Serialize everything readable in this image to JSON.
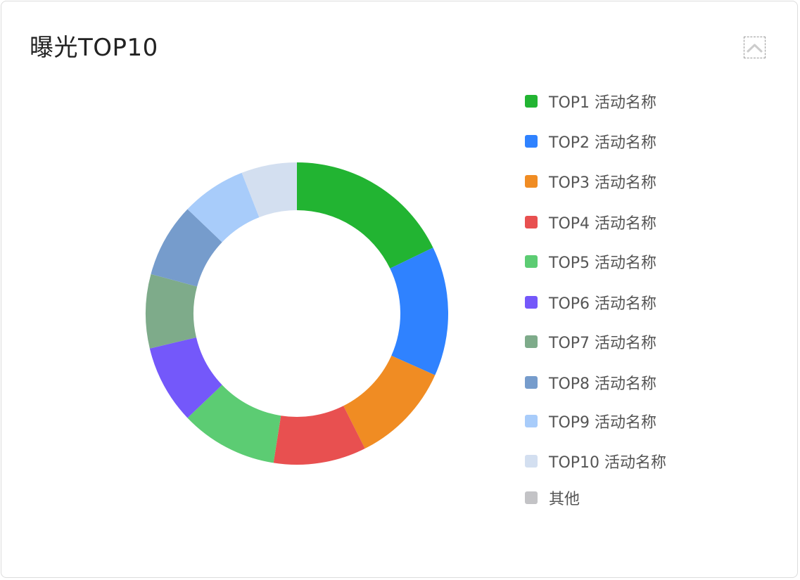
{
  "title": "曝光TOP10",
  "collapse_icon": "chevron-up-icon",
  "chart_data": {
    "type": "pie",
    "style": "donut",
    "title": "曝光TOP10",
    "legend_position": "right",
    "categories": [
      "TOP1 活动名称",
      "TOP2 活动名称",
      "TOP3 活动名称",
      "TOP4 活动名称",
      "TOP5 活动名称",
      "TOP6 活动名称",
      "TOP7 活动名称",
      "TOP8 活动名称",
      "TOP9 活动名称",
      "TOP10 活动名称",
      "其他"
    ],
    "values": [
      18,
      14,
      11,
      10,
      10.5,
      8.5,
      8,
      8,
      7,
      6,
      0
    ],
    "colors": [
      "#22b432",
      "#2f82ff",
      "#f08c23",
      "#e85050",
      "#5ccc73",
      "#7458fa",
      "#7eab8a",
      "#769ccc",
      "#a8ccfa",
      "#d3dff0",
      "#c3c3c6"
    ]
  }
}
